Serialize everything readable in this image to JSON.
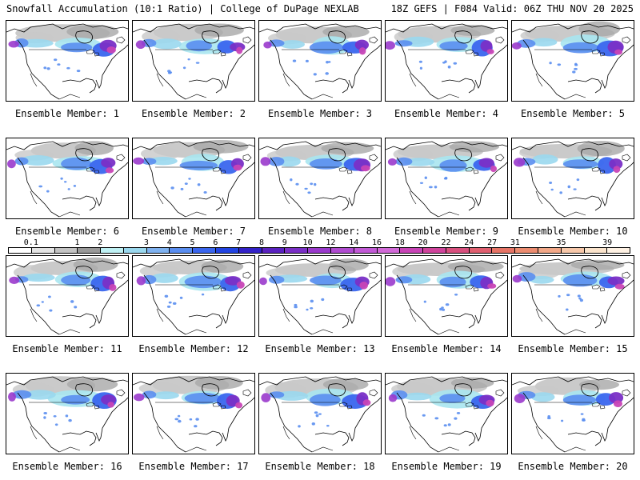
{
  "header": {
    "title": "Snowfall Accumulation (10:1 Ratio) | College of DuPage NEXLAB",
    "run_info": "18Z GEFS | F084 Valid: 06Z THU NOV 20 2025"
  },
  "member_label_prefix": "Ensemble Member: ",
  "members": [
    {
      "number": "1",
      "label": "Ensemble Member: 1"
    },
    {
      "number": "2",
      "label": "Ensemble Member: 2"
    },
    {
      "number": "3",
      "label": "Ensemble Member: 3"
    },
    {
      "number": "4",
      "label": "Ensemble Member: 4"
    },
    {
      "number": "5",
      "label": "Ensemble Member: 5"
    },
    {
      "number": "6",
      "label": "Ensemble Member: 6"
    },
    {
      "number": "7",
      "label": "Ensemble Member: 7"
    },
    {
      "number": "8",
      "label": "Ensemble Member: 8"
    },
    {
      "number": "9",
      "label": "Ensemble Member: 9"
    },
    {
      "number": "10",
      "label": "Ensemble Member: 10"
    },
    {
      "number": "11",
      "label": "Ensemble Member: 11"
    },
    {
      "number": "12",
      "label": "Ensemble Member: 12"
    },
    {
      "number": "13",
      "label": "Ensemble Member: 13"
    },
    {
      "number": "14",
      "label": "Ensemble Member: 14"
    },
    {
      "number": "15",
      "label": "Ensemble Member: 15"
    },
    {
      "number": "16",
      "label": "Ensemble Member: 16"
    },
    {
      "number": "17",
      "label": "Ensemble Member: 17"
    },
    {
      "number": "18",
      "label": "Ensemble Member: 18"
    },
    {
      "number": "19",
      "label": "Ensemble Member: 19"
    },
    {
      "number": "20",
      "label": "Ensemble Member: 20"
    }
  ],
  "legend": {
    "ticks": [
      "0.1",
      "1",
      "2",
      "3",
      "4",
      "5",
      "6",
      "7",
      "8",
      "9",
      "10",
      "12",
      "14",
      "16",
      "18",
      "20",
      "22",
      "24",
      "27",
      "31",
      "35",
      "39"
    ],
    "colors": [
      "#ffffff",
      "#e4e4e4",
      "#c4c4c4",
      "#9a9a9a",
      "#bff1f4",
      "#9ad8ee",
      "#7fb2f0",
      "#5a8ef0",
      "#3a66ee",
      "#2244e2",
      "#3322c8",
      "#5a22c0",
      "#7a2fc6",
      "#9a3acc",
      "#b04cd0",
      "#c25ad6",
      "#d26ad8",
      "#c844b6",
      "#d0449c",
      "#d8507e",
      "#e06070",
      "#e67466",
      "#ec8c70",
      "#f2a888",
      "#f7c8aa",
      "#fbe4cc",
      "#fff2e4"
    ]
  }
}
